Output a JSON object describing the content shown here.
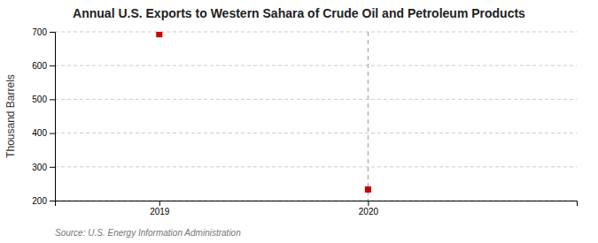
{
  "chart_data": {
    "type": "scatter",
    "title": "Annual U.S. Exports to Western Sahara of Crude Oil and Petroleum Products",
    "ylabel": "Thousand Barrels",
    "annotations": [
      "Source: U.S. Energy Information Administration"
    ],
    "x": [
      2019,
      2020
    ],
    "values": [
      693,
      233
    ],
    "color": "#cc0000",
    "marker": "square",
    "vline": 2020,
    "xlim": [
      2018.5,
      2021.0
    ],
    "xticks": [
      2019,
      2020
    ],
    "ylim": [
      200,
      700
    ],
    "yticks": [
      200,
      300,
      400,
      500,
      600,
      700
    ],
    "grid": true
  }
}
